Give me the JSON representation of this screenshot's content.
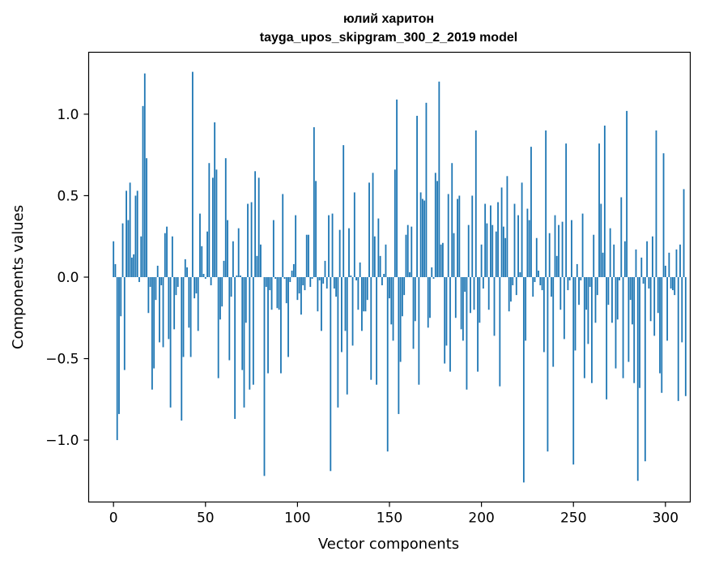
{
  "chart_data": {
    "type": "bar",
    "title": "юлий харитон",
    "subtitle": "tayga_upos_skipgram_300_2_2019 model",
    "xlabel": "Vector components",
    "ylabel": "Components values",
    "xlim": [
      -13.5,
      313.5
    ],
    "ylim": [
      -1.38,
      1.38
    ],
    "x_ticks": [
      0,
      50,
      100,
      150,
      200,
      250,
      300
    ],
    "y_ticks": [
      1.0,
      0.5,
      0.0,
      -0.5,
      -1.0
    ],
    "y_tick_labels": [
      "1.0",
      "0.5",
      "0.0",
      "−0.5",
      "−1.0"
    ],
    "grid": false,
    "bar_color": "#1f77b4",
    "values": [
      0.22,
      0.08,
      -1.0,
      -0.84,
      -0.24,
      0.33,
      -0.57,
      0.53,
      0.35,
      0.58,
      0.12,
      0.14,
      0.5,
      0.53,
      -0.03,
      0.25,
      1.05,
      1.25,
      0.73,
      -0.22,
      -0.06,
      -0.69,
      -0.56,
      -0.14,
      0.07,
      -0.4,
      -0.05,
      -0.43,
      0.27,
      0.31,
      -0.38,
      -0.8,
      0.25,
      -0.32,
      -0.11,
      -0.06,
      0.0,
      -0.88,
      -0.49,
      0.11,
      0.06,
      -0.31,
      -0.49,
      1.26,
      -0.13,
      -0.1,
      -0.33,
      0.39,
      0.19,
      0.02,
      -0.01,
      0.28,
      0.7,
      -0.05,
      0.61,
      0.95,
      0.66,
      -0.62,
      -0.26,
      -0.18,
      0.1,
      0.73,
      0.35,
      -0.51,
      -0.12,
      0.22,
      -0.87,
      0.01,
      0.3,
      0.01,
      -0.57,
      -0.8,
      -0.28,
      0.45,
      -0.69,
      0.46,
      -0.66,
      0.65,
      0.13,
      0.61,
      0.2,
      0.0,
      -1.22,
      -0.06,
      -0.59,
      -0.08,
      -0.2,
      0.35,
      -0.01,
      -0.19,
      -0.2,
      -0.59,
      0.51,
      -0.01,
      -0.16,
      -0.49,
      -0.03,
      0.04,
      0.08,
      0.38,
      -0.14,
      -0.1,
      -0.23,
      -0.05,
      -0.08,
      0.26,
      0.26,
      -0.06,
      -0.01,
      0.92,
      0.59,
      -0.21,
      -0.02,
      -0.33,
      -0.04,
      0.1,
      -0.07,
      0.38,
      -1.19,
      0.39,
      -0.07,
      -0.12,
      -0.8,
      0.29,
      -0.46,
      0.81,
      -0.33,
      -0.72,
      0.3,
      0.01,
      -0.42,
      0.52,
      -0.02,
      -0.2,
      0.09,
      -0.33,
      -0.21,
      -0.21,
      -0.14,
      0.58,
      -0.63,
      0.64,
      0.25,
      -0.66,
      0.36,
      0.13,
      -0.05,
      0.02,
      0.2,
      -1.07,
      -0.13,
      -0.29,
      -0.39,
      0.66,
      1.09,
      -0.84,
      -0.52,
      -0.24,
      -0.11,
      0.26,
      0.32,
      0.03,
      0.31,
      -0.44,
      -0.27,
      0.99,
      -0.66,
      0.52,
      0.48,
      0.47,
      1.07,
      -0.31,
      -0.25,
      0.06,
      -0.01,
      0.64,
      0.59,
      1.2,
      0.2,
      0.21,
      -0.53,
      -0.42,
      0.51,
      -0.58,
      0.7,
      0.27,
      -0.25,
      0.48,
      0.5,
      -0.32,
      -0.39,
      -0.09,
      -0.69,
      0.32,
      -0.22,
      0.5,
      -0.2,
      0.9,
      -0.58,
      -0.28,
      0.2,
      -0.07,
      0.45,
      0.33,
      -0.2,
      0.44,
      0.32,
      -0.36,
      0.28,
      0.46,
      -0.67,
      0.55,
      0.31,
      0.24,
      0.62,
      -0.21,
      -0.15,
      -0.05,
      0.45,
      -0.11,
      0.38,
      0.03,
      0.58,
      -1.26,
      -0.39,
      0.42,
      0.35,
      0.8,
      -0.12,
      -0.03,
      0.24,
      0.04,
      -0.05,
      -0.08,
      -0.46,
      0.9,
      -1.07,
      0.27,
      -0.12,
      -0.55,
      0.38,
      0.13,
      0.32,
      -0.2,
      0.34,
      -0.38,
      0.82,
      -0.08,
      -0.02,
      0.35,
      -1.15,
      -0.45,
      0.08,
      -0.17,
      -0.02,
      0.39,
      -0.62,
      -0.2,
      -0.41,
      -0.06,
      -0.65,
      0.26,
      -0.28,
      -0.11,
      0.82,
      0.45,
      0.15,
      0.93,
      -0.75,
      -0.17,
      0.3,
      -0.28,
      0.2,
      -0.56,
      -0.26,
      -0.02,
      0.49,
      -0.62,
      0.22,
      1.02,
      -0.52,
      -0.14,
      -0.29,
      -0.65,
      0.17,
      -1.25,
      -0.68,
      0.12,
      -0.04,
      -1.13,
      0.22,
      -0.07,
      -0.27,
      0.25,
      -0.36,
      0.9,
      -0.22,
      -0.59,
      -0.71,
      0.76,
      0.07,
      -0.39,
      0.15,
      -0.07,
      -0.08,
      -0.11,
      0.17,
      -0.76,
      0.2,
      -0.4,
      0.54,
      -0.73
    ]
  }
}
